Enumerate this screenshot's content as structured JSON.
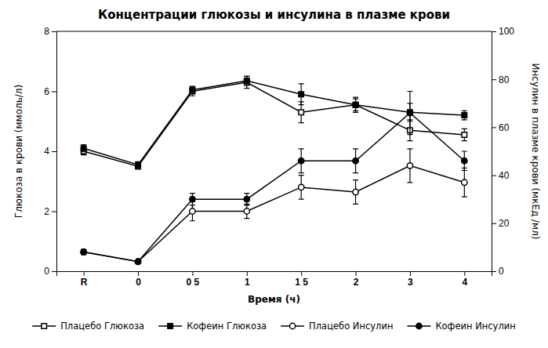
{
  "chart_data": {
    "type": "line",
    "title": "Концентрации  глюкозы и инсулина в плазме крови",
    "x_label": "Время (ч)",
    "y_label": "Глюкоза в крови (ммоль/л)",
    "y2_label": "Инсулин в плазме крови (мкЕд /мл)",
    "categories": [
      "R",
      "0",
      "0 5",
      "1",
      "1 5",
      "2",
      "3",
      "4"
    ],
    "ylim": [
      0,
      8
    ],
    "yticks": [
      0,
      2,
      4,
      6,
      8
    ],
    "y2lim": [
      0,
      100
    ],
    "y2ticks": [
      0,
      20,
      40,
      60,
      80,
      100
    ],
    "grid": false,
    "legend": "bottom",
    "series": [
      {
        "name": "Плацебо Глюкоза",
        "color": "#000000",
        "marker": "square-open",
        "values": [
          4.0,
          3.5,
          6.0,
          6.3,
          5.3,
          5.55,
          4.7,
          4.55
        ],
        "errors": [
          0.12,
          0.1,
          0.15,
          0.2,
          0.35,
          0.25,
          0.35,
          0.2
        ]
      },
      {
        "name": "Кофеин Глюкоза",
        "color": "#000000",
        "marker": "square",
        "values": [
          4.1,
          3.55,
          6.05,
          6.35,
          5.9,
          5.55,
          5.3,
          5.2
        ],
        "errors": [
          0.12,
          0.1,
          0.12,
          0.15,
          0.35,
          0.2,
          0.3,
          0.15
        ]
      },
      {
        "name": "Плацебо Инсулин",
        "color": "#000000",
        "marker": "circle-open",
        "axis": "y2",
        "values": [
          8.0,
          4.0,
          25.0,
          25.0,
          35.0,
          33.0,
          44.0,
          37.0
        ],
        "errors": [
          1.0,
          0.5,
          4.0,
          3.0,
          5.0,
          5.0,
          7.0,
          6.0
        ]
      },
      {
        "name": "Кофеин Инсулин",
        "color": "#000000",
        "marker": "circle",
        "axis": "y2",
        "values": [
          8.0,
          4.0,
          30.0,
          30.0,
          46.0,
          46.0,
          66.0,
          46.0
        ],
        "errors": [
          1.0,
          0.5,
          2.5,
          2.5,
          5.0,
          5.0,
          9.0,
          4.0
        ]
      }
    ]
  }
}
